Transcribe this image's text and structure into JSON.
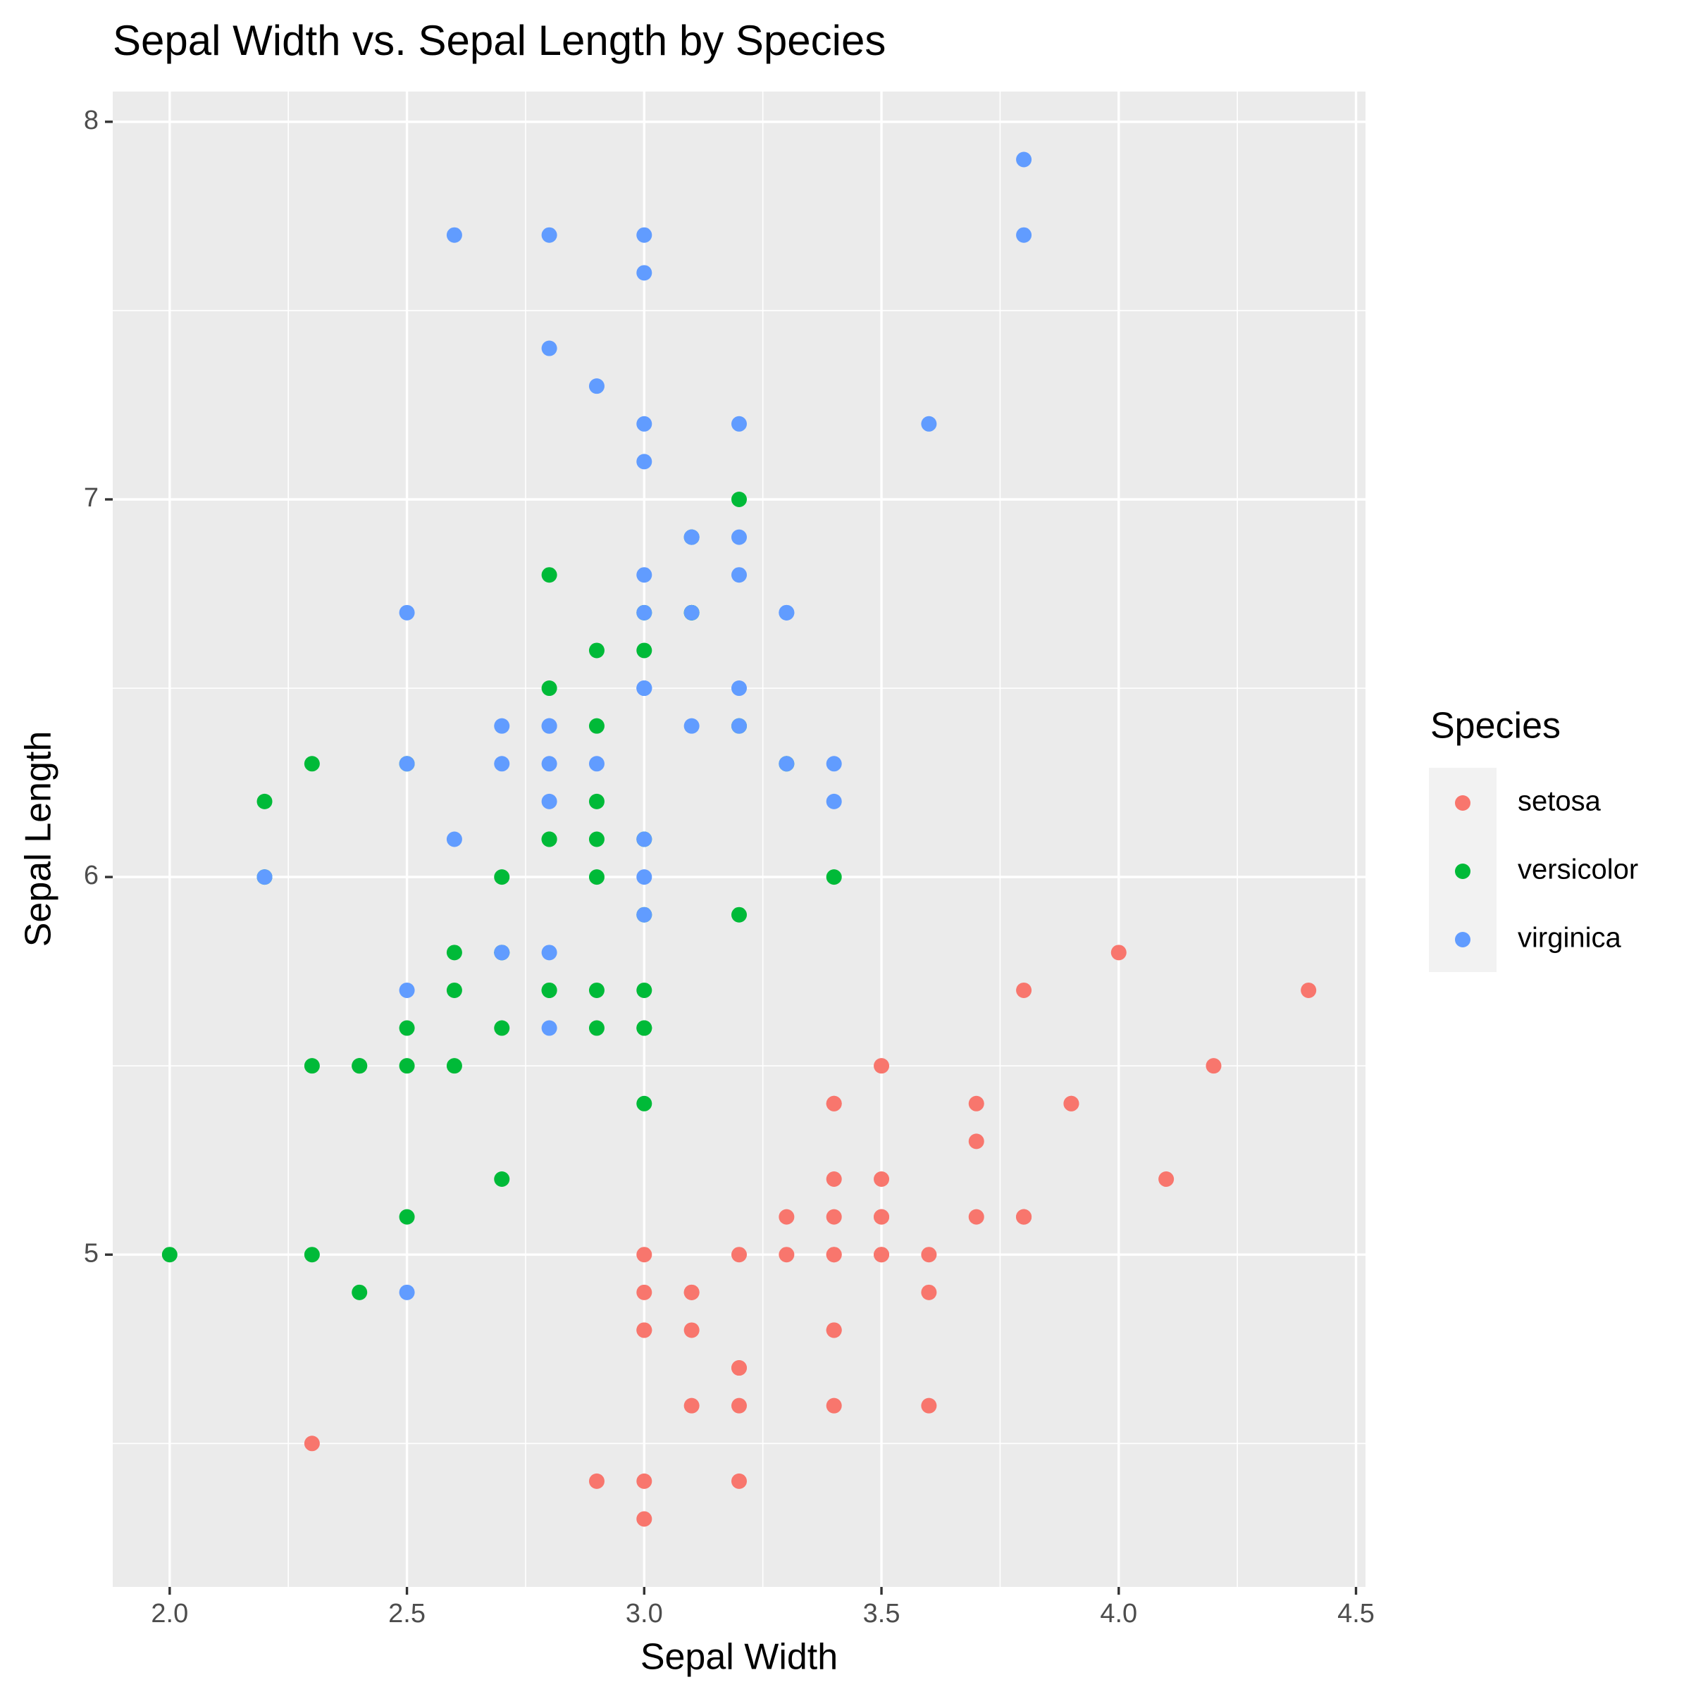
{
  "chart_data": {
    "type": "scatter",
    "title": "Sepal Width vs. Sepal Length by Species",
    "x_label": "Sepal Width",
    "y_label": "Sepal Length",
    "legend_title": "Species",
    "legend_position": "right",
    "grid": true,
    "xlim": [
      1.88,
      4.52
    ],
    "ylim": [
      4.12,
      8.08
    ],
    "xticks": [
      {
        "value": 2,
        "label": "2.0"
      },
      2.5,
      {
        "value": 3,
        "label": "3.0"
      },
      3.5,
      {
        "value": 4,
        "label": "4.0"
      },
      4.5
    ],
    "yticks": [
      5,
      6,
      7,
      8
    ],
    "series": [
      {
        "name": "setosa",
        "color": "#F8766D",
        "x": [
          3.5,
          3.0,
          3.2,
          3.1,
          3.6,
          3.9,
          3.4,
          3.4,
          2.9,
          3.1,
          3.7,
          3.4,
          3.0,
          3.0,
          4.0,
          4.4,
          3.9,
          3.5,
          3.8,
          3.8,
          3.4,
          3.7,
          3.6,
          3.3,
          3.4,
          3.0,
          3.4,
          3.5,
          3.4,
          3.2,
          3.1,
          3.4,
          4.1,
          4.2,
          3.1,
          3.2,
          3.5,
          3.6,
          3.0,
          3.4,
          3.5,
          2.3,
          3.2,
          3.5,
          3.8,
          3.0,
          3.8,
          3.2,
          3.7,
          3.3
        ],
        "values": [
          5.1,
          4.9,
          4.7,
          4.6,
          5.0,
          5.4,
          4.6,
          5.0,
          4.4,
          4.9,
          5.4,
          4.8,
          4.8,
          4.3,
          5.8,
          5.7,
          5.4,
          5.1,
          5.7,
          5.1,
          5.4,
          5.1,
          4.6,
          5.1,
          4.8,
          5.0,
          5.0,
          5.2,
          5.2,
          4.7,
          4.8,
          5.4,
          5.2,
          5.5,
          4.9,
          5.0,
          5.5,
          4.9,
          4.4,
          5.1,
          5.0,
          4.5,
          4.4,
          5.0,
          5.1,
          4.8,
          5.1,
          4.6,
          5.3,
          5.0
        ]
      },
      {
        "name": "versicolor",
        "color": "#00BA38",
        "x": [
          3.2,
          3.2,
          3.1,
          2.3,
          2.8,
          2.8,
          3.3,
          2.4,
          2.9,
          2.7,
          2.0,
          3.0,
          2.2,
          2.9,
          2.9,
          3.1,
          3.0,
          2.7,
          2.2,
          2.5,
          3.2,
          2.8,
          2.5,
          2.8,
          2.9,
          3.0,
          2.8,
          3.0,
          2.9,
          2.6,
          2.4,
          2.4,
          2.7,
          2.7,
          3.0,
          3.4,
          3.1,
          2.3,
          3.0,
          2.5,
          2.6,
          3.0,
          2.6,
          2.3,
          2.7,
          3.0,
          2.9,
          2.9,
          2.5,
          2.8
        ],
        "values": [
          7.0,
          6.4,
          6.9,
          5.5,
          6.5,
          5.7,
          6.3,
          4.9,
          6.6,
          5.2,
          5.0,
          5.9,
          6.0,
          6.1,
          5.6,
          6.7,
          5.6,
          5.8,
          6.2,
          5.6,
          5.9,
          6.1,
          6.3,
          6.1,
          6.4,
          6.6,
          6.8,
          6.7,
          6.0,
          5.7,
          5.5,
          5.5,
          5.8,
          6.0,
          5.4,
          6.0,
          6.7,
          6.3,
          5.6,
          5.5,
          5.5,
          6.1,
          5.8,
          5.0,
          5.6,
          5.7,
          5.7,
          6.2,
          5.1,
          5.7
        ]
      },
      {
        "name": "virginica",
        "color": "#619CFF",
        "x": [
          3.3,
          2.7,
          3.0,
          2.9,
          3.0,
          3.0,
          2.5,
          2.9,
          2.5,
          3.6,
          3.2,
          2.7,
          3.0,
          2.5,
          2.8,
          3.2,
          3.0,
          3.8,
          2.6,
          2.2,
          3.2,
          2.8,
          2.8,
          2.7,
          3.3,
          3.2,
          2.8,
          3.0,
          2.8,
          3.0,
          2.8,
          3.8,
          2.8,
          2.8,
          2.6,
          3.0,
          3.4,
          3.1,
          3.0,
          3.1,
          3.1,
          3.1,
          2.7,
          3.2,
          3.3,
          3.0,
          2.5,
          3.0,
          3.4,
          3.0
        ],
        "values": [
          6.3,
          5.8,
          7.1,
          6.3,
          6.5,
          7.6,
          4.9,
          7.3,
          6.7,
          7.2,
          6.5,
          6.4,
          6.8,
          5.7,
          5.8,
          6.4,
          6.5,
          7.7,
          7.7,
          6.0,
          6.9,
          5.6,
          7.7,
          6.3,
          6.7,
          7.2,
          6.2,
          6.1,
          6.4,
          7.2,
          7.4,
          7.9,
          6.4,
          6.3,
          6.1,
          7.7,
          6.3,
          6.4,
          6.0,
          6.9,
          6.7,
          6.9,
          5.8,
          6.8,
          6.7,
          6.7,
          6.3,
          6.5,
          6.2,
          5.9
        ]
      }
    ]
  }
}
